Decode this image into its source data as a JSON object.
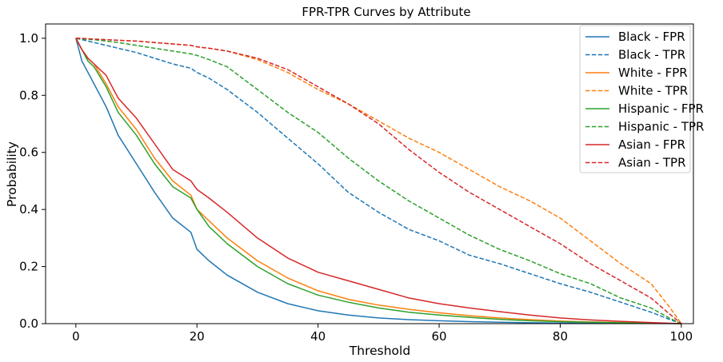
{
  "chart_data": {
    "type": "line",
    "title": "FPR-TPR Curves by Attribute",
    "xlabel": "Threshold",
    "ylabel": "Probability",
    "xlim": [
      -5,
      102
    ],
    "ylim": [
      0,
      1.05
    ],
    "xticks": [
      0,
      20,
      40,
      60,
      80,
      100
    ],
    "yticks": [
      0.0,
      0.2,
      0.4,
      0.6,
      0.8,
      1.0
    ],
    "x": [
      0,
      1,
      2,
      3,
      5,
      7,
      10,
      13,
      16,
      19,
      20,
      22,
      25,
      30,
      35,
      40,
      45,
      50,
      55,
      60,
      65,
      70,
      75,
      80,
      85,
      90,
      95,
      98,
      100
    ],
    "grid": false,
    "legend_position": "top-right",
    "series": [
      {
        "name": "Black - FPR",
        "color": "#1f77b4",
        "style": "solid",
        "values": [
          1.0,
          0.92,
          0.88,
          0.84,
          0.76,
          0.66,
          0.56,
          0.46,
          0.37,
          0.32,
          0.26,
          0.22,
          0.17,
          0.11,
          0.07,
          0.045,
          0.03,
          0.02,
          0.014,
          0.01,
          0.007,
          0.005,
          0.003,
          0.002,
          0.0015,
          0.001,
          0.0005,
          0.0002,
          0.0
        ]
      },
      {
        "name": "Black - TPR",
        "color": "#1f77b4",
        "style": "dashed",
        "values": [
          1.0,
          0.995,
          0.99,
          0.985,
          0.975,
          0.965,
          0.95,
          0.93,
          0.91,
          0.895,
          0.88,
          0.86,
          0.82,
          0.74,
          0.65,
          0.56,
          0.46,
          0.39,
          0.33,
          0.29,
          0.24,
          0.21,
          0.175,
          0.14,
          0.11,
          0.075,
          0.04,
          0.015,
          0.0
        ]
      },
      {
        "name": "White - FPR",
        "color": "#ff7f0e",
        "style": "solid",
        "values": [
          1.0,
          0.96,
          0.93,
          0.91,
          0.84,
          0.76,
          0.68,
          0.58,
          0.5,
          0.45,
          0.4,
          0.36,
          0.3,
          0.22,
          0.16,
          0.115,
          0.085,
          0.065,
          0.05,
          0.038,
          0.028,
          0.02,
          0.014,
          0.009,
          0.006,
          0.004,
          0.002,
          0.001,
          0.0
        ]
      },
      {
        "name": "White - TPR",
        "color": "#ff7f0e",
        "style": "dashed",
        "values": [
          1.0,
          1.0,
          0.998,
          0.997,
          0.995,
          0.993,
          0.99,
          0.985,
          0.98,
          0.975,
          0.97,
          0.965,
          0.955,
          0.925,
          0.88,
          0.82,
          0.77,
          0.71,
          0.65,
          0.6,
          0.54,
          0.48,
          0.43,
          0.37,
          0.29,
          0.21,
          0.14,
          0.06,
          0.0
        ]
      },
      {
        "name": "Hispanic - FPR",
        "color": "#2ca02c",
        "style": "solid",
        "values": [
          1.0,
          0.96,
          0.92,
          0.9,
          0.83,
          0.74,
          0.66,
          0.56,
          0.48,
          0.44,
          0.4,
          0.34,
          0.28,
          0.2,
          0.14,
          0.1,
          0.075,
          0.055,
          0.04,
          0.03,
          0.022,
          0.015,
          0.01,
          0.007,
          0.005,
          0.003,
          0.0015,
          0.0005,
          0.0
        ]
      },
      {
        "name": "Hispanic - TPR",
        "color": "#2ca02c",
        "style": "dashed",
        "values": [
          1.0,
          0.998,
          0.996,
          0.995,
          0.99,
          0.985,
          0.975,
          0.965,
          0.955,
          0.945,
          0.94,
          0.925,
          0.9,
          0.82,
          0.74,
          0.67,
          0.58,
          0.5,
          0.43,
          0.37,
          0.31,
          0.26,
          0.22,
          0.175,
          0.14,
          0.09,
          0.055,
          0.02,
          0.0
        ]
      },
      {
        "name": "Asian - FPR",
        "color": "#d62728",
        "style": "solid",
        "values": [
          1.0,
          0.96,
          0.93,
          0.91,
          0.87,
          0.79,
          0.72,
          0.63,
          0.54,
          0.5,
          0.47,
          0.44,
          0.39,
          0.3,
          0.23,
          0.18,
          0.15,
          0.12,
          0.09,
          0.07,
          0.055,
          0.042,
          0.03,
          0.02,
          0.013,
          0.008,
          0.004,
          0.0015,
          0.0
        ]
      },
      {
        "name": "Asian - TPR",
        "color": "#d62728",
        "style": "dashed",
        "values": [
          1.0,
          1.0,
          0.998,
          0.997,
          0.995,
          0.993,
          0.99,
          0.985,
          0.98,
          0.975,
          0.97,
          0.965,
          0.955,
          0.93,
          0.89,
          0.83,
          0.77,
          0.7,
          0.61,
          0.53,
          0.46,
          0.4,
          0.34,
          0.28,
          0.21,
          0.15,
          0.09,
          0.035,
          0.0
        ]
      }
    ]
  }
}
